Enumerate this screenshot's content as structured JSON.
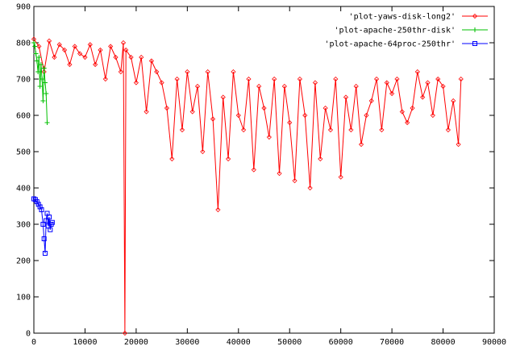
{
  "chart_data": {
    "type": "line",
    "title": "",
    "xlabel": "",
    "ylabel": "",
    "xlim": [
      0,
      90000
    ],
    "ylim": [
      0,
      900
    ],
    "x_ticks": [
      0,
      10000,
      20000,
      30000,
      40000,
      50000,
      60000,
      70000,
      80000,
      90000
    ],
    "y_ticks": [
      0,
      100,
      200,
      300,
      400,
      500,
      600,
      700,
      800,
      900
    ],
    "grid": false,
    "legend_position": "top-right",
    "series": [
      {
        "name": "'plot-yaws-disk-long2'",
        "color": "#ff0000",
        "marker": "diamond",
        "x": [
          0,
          1000,
          2000,
          3000,
          4000,
          5000,
          6000,
          7000,
          8000,
          9000,
          10000,
          11000,
          12000,
          13000,
          14000,
          15000,
          16000,
          17000,
          17500,
          17800,
          18000,
          19000,
          20000,
          21000,
          22000,
          23000,
          24000,
          25000,
          26000,
          27000,
          28000,
          29000,
          30000,
          31000,
          32000,
          33000,
          34000,
          35000,
          36000,
          37000,
          38000,
          39000,
          40000,
          41000,
          42000,
          43000,
          44000,
          45000,
          46000,
          47000,
          48000,
          49000,
          50000,
          51000,
          52000,
          53000,
          54000,
          55000,
          56000,
          57000,
          58000,
          59000,
          60000,
          61000,
          62000,
          63000,
          64000,
          65000,
          66000,
          67000,
          68000,
          69000,
          70000,
          71000,
          72000,
          73000,
          74000,
          75000,
          76000,
          77000,
          78000,
          79000,
          80000,
          81000,
          82000,
          83000,
          83500
        ],
        "y": [
          810,
          790,
          720,
          805,
          760,
          795,
          780,
          740,
          790,
          770,
          760,
          795,
          740,
          780,
          700,
          790,
          760,
          720,
          800,
          0,
          780,
          760,
          690,
          760,
          610,
          750,
          720,
          690,
          620,
          480,
          700,
          560,
          720,
          610,
          680,
          500,
          720,
          590,
          340,
          650,
          480,
          720,
          600,
          560,
          700,
          450,
          680,
          620,
          540,
          700,
          440,
          680,
          580,
          420,
          700,
          600,
          400,
          690,
          480,
          620,
          560,
          700,
          430,
          650,
          560,
          680,
          520,
          600,
          640,
          700,
          560,
          690,
          660,
          700,
          610,
          580,
          620,
          720,
          650,
          690,
          600,
          700,
          680,
          560,
          640,
          520,
          700
        ]
      },
      {
        "name": "'plot-apache-250thr-disk'",
        "color": "#00c000",
        "marker": "plus",
        "x": [
          0,
          200,
          400,
          600,
          800,
          1000,
          1200,
          1400,
          1600,
          1800,
          2000,
          2200,
          2400,
          2600
        ],
        "y": [
          800,
          790,
          770,
          750,
          720,
          760,
          680,
          740,
          700,
          640,
          730,
          690,
          660,
          580
        ]
      },
      {
        "name": "'plot-apache-64proc-250thr'",
        "color": "#0000ff",
        "marker": "square",
        "x": [
          0,
          300,
          600,
          900,
          1200,
          1500,
          1800,
          2000,
          2200,
          2400,
          2600,
          2800,
          3000,
          3200,
          3400,
          3600
        ],
        "y": [
          370,
          368,
          362,
          355,
          348,
          340,
          300,
          260,
          220,
          310,
          330,
          295,
          320,
          285,
          300,
          305
        ]
      }
    ]
  }
}
